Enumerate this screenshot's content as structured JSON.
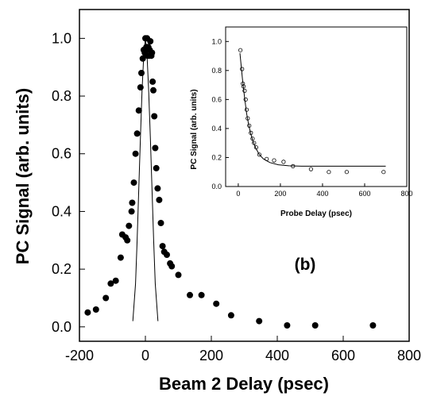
{
  "chart_data": [
    {
      "name": "main",
      "type": "scatter",
      "xlabel": "Beam 2 Delay (psec)",
      "ylabel": "PC Signal (arb. units)",
      "annotation": "(b)",
      "xlim": [
        -200,
        800
      ],
      "ylim": [
        -0.05,
        1.1
      ],
      "xticks": [
        -200,
        0,
        200,
        400,
        600,
        800
      ],
      "yticks": [
        0.0,
        0.2,
        0.4,
        0.6,
        0.8,
        1.0
      ],
      "xtick_labels": [
        "-200",
        "0",
        "200",
        "400",
        "600",
        "800"
      ],
      "ytick_labels": [
        "0.0",
        "0.2",
        "0.4",
        "0.6",
        "0.8",
        "1.0"
      ],
      "series": [
        {
          "marker": "filled-circle",
          "points": [
            [
              -175,
              0.05
            ],
            [
              -150,
              0.06
            ],
            [
              -120,
              0.1
            ],
            [
              -105,
              0.15
            ],
            [
              -90,
              0.16
            ],
            [
              -75,
              0.24
            ],
            [
              -70,
              0.32
            ],
            [
              -60,
              0.31
            ],
            [
              -55,
              0.3
            ],
            [
              -50,
              0.35
            ],
            [
              -42,
              0.4
            ],
            [
              -40,
              0.43
            ],
            [
              -35,
              0.5
            ],
            [
              -30,
              0.6
            ],
            [
              -25,
              0.67
            ],
            [
              -20,
              0.75
            ],
            [
              -15,
              0.83
            ],
            [
              -12,
              0.88
            ],
            [
              -8,
              0.93
            ],
            [
              -5,
              0.96
            ],
            [
              -2,
              0.95
            ],
            [
              0,
              1.0
            ],
            [
              3,
              0.97
            ],
            [
              5,
              1.0
            ],
            [
              7,
              0.94
            ],
            [
              9,
              0.97
            ],
            [
              11,
              0.94
            ],
            [
              13,
              0.96
            ],
            [
              15,
              0.99
            ],
            [
              18,
              0.94
            ],
            [
              20,
              0.95
            ],
            [
              22,
              0.85
            ],
            [
              24,
              0.82
            ],
            [
              27,
              0.73
            ],
            [
              30,
              0.62
            ],
            [
              33,
              0.55
            ],
            [
              37,
              0.48
            ],
            [
              42,
              0.44
            ],
            [
              47,
              0.36
            ],
            [
              52,
              0.28
            ],
            [
              57,
              0.26
            ],
            [
              65,
              0.25
            ],
            [
              75,
              0.22
            ],
            [
              80,
              0.21
            ],
            [
              100,
              0.18
            ],
            [
              135,
              0.11
            ],
            [
              170,
              0.11
            ],
            [
              215,
              0.08
            ],
            [
              260,
              0.04
            ],
            [
              345,
              0.02
            ],
            [
              430,
              0.005
            ],
            [
              515,
              0.005
            ],
            [
              690,
              0.005
            ]
          ]
        },
        {
          "marker": "line",
          "points": [
            [
              -38,
              0.02
            ],
            [
              -30,
              0.15
            ],
            [
              -25,
              0.3
            ],
            [
              -20,
              0.48
            ],
            [
              -15,
              0.66
            ],
            [
              -10,
              0.82
            ],
            [
              -5,
              0.94
            ],
            [
              0,
              1.0
            ],
            [
              5,
              0.94
            ],
            [
              10,
              0.82
            ],
            [
              15,
              0.66
            ],
            [
              20,
              0.48
            ],
            [
              25,
              0.3
            ],
            [
              30,
              0.15
            ],
            [
              38,
              0.02
            ]
          ]
        }
      ]
    },
    {
      "name": "inset",
      "type": "scatter",
      "xlabel": "Probe Delay (psec)",
      "ylabel": "PC Signal (arb. units)",
      "xlim": [
        -60,
        800
      ],
      "ylim": [
        0.0,
        1.1
      ],
      "xticks": [
        0,
        200,
        400,
        600,
        800
      ],
      "yticks": [
        0.0,
        0.2,
        0.4,
        0.6,
        0.8,
        1.0
      ],
      "xtick_labels": [
        "0",
        "200",
        "400",
        "600",
        "800"
      ],
      "ytick_labels": [
        "0.0",
        "0.2",
        "0.4",
        "0.6",
        "0.8",
        "1.0"
      ],
      "series": [
        {
          "marker": "open-circle",
          "points": [
            [
              10,
              0.94
            ],
            [
              18,
              0.81
            ],
            [
              22,
              0.71
            ],
            [
              25,
              0.69
            ],
            [
              30,
              0.66
            ],
            [
              35,
              0.6
            ],
            [
              40,
              0.53
            ],
            [
              45,
              0.47
            ],
            [
              52,
              0.42
            ],
            [
              60,
              0.37
            ],
            [
              68,
              0.33
            ],
            [
              75,
              0.3
            ],
            [
              85,
              0.27
            ],
            [
              100,
              0.22
            ],
            [
              135,
              0.19
            ],
            [
              170,
              0.18
            ],
            [
              215,
              0.17
            ],
            [
              260,
              0.14
            ],
            [
              345,
              0.12
            ],
            [
              430,
              0.1
            ],
            [
              515,
              0.1
            ],
            [
              690,
              0.1
            ]
          ]
        },
        {
          "marker": "line",
          "points": [
            [
              8,
              0.92
            ],
            [
              20,
              0.74
            ],
            [
              30,
              0.61
            ],
            [
              40,
              0.5
            ],
            [
              50,
              0.42
            ],
            [
              60,
              0.36
            ],
            [
              70,
              0.31
            ],
            [
              85,
              0.26
            ],
            [
              100,
              0.22
            ],
            [
              120,
              0.19
            ],
            [
              150,
              0.165
            ],
            [
              190,
              0.15
            ],
            [
              240,
              0.143
            ],
            [
              300,
              0.14
            ],
            [
              400,
              0.14
            ],
            [
              550,
              0.14
            ],
            [
              700,
              0.14
            ]
          ]
        }
      ]
    }
  ]
}
